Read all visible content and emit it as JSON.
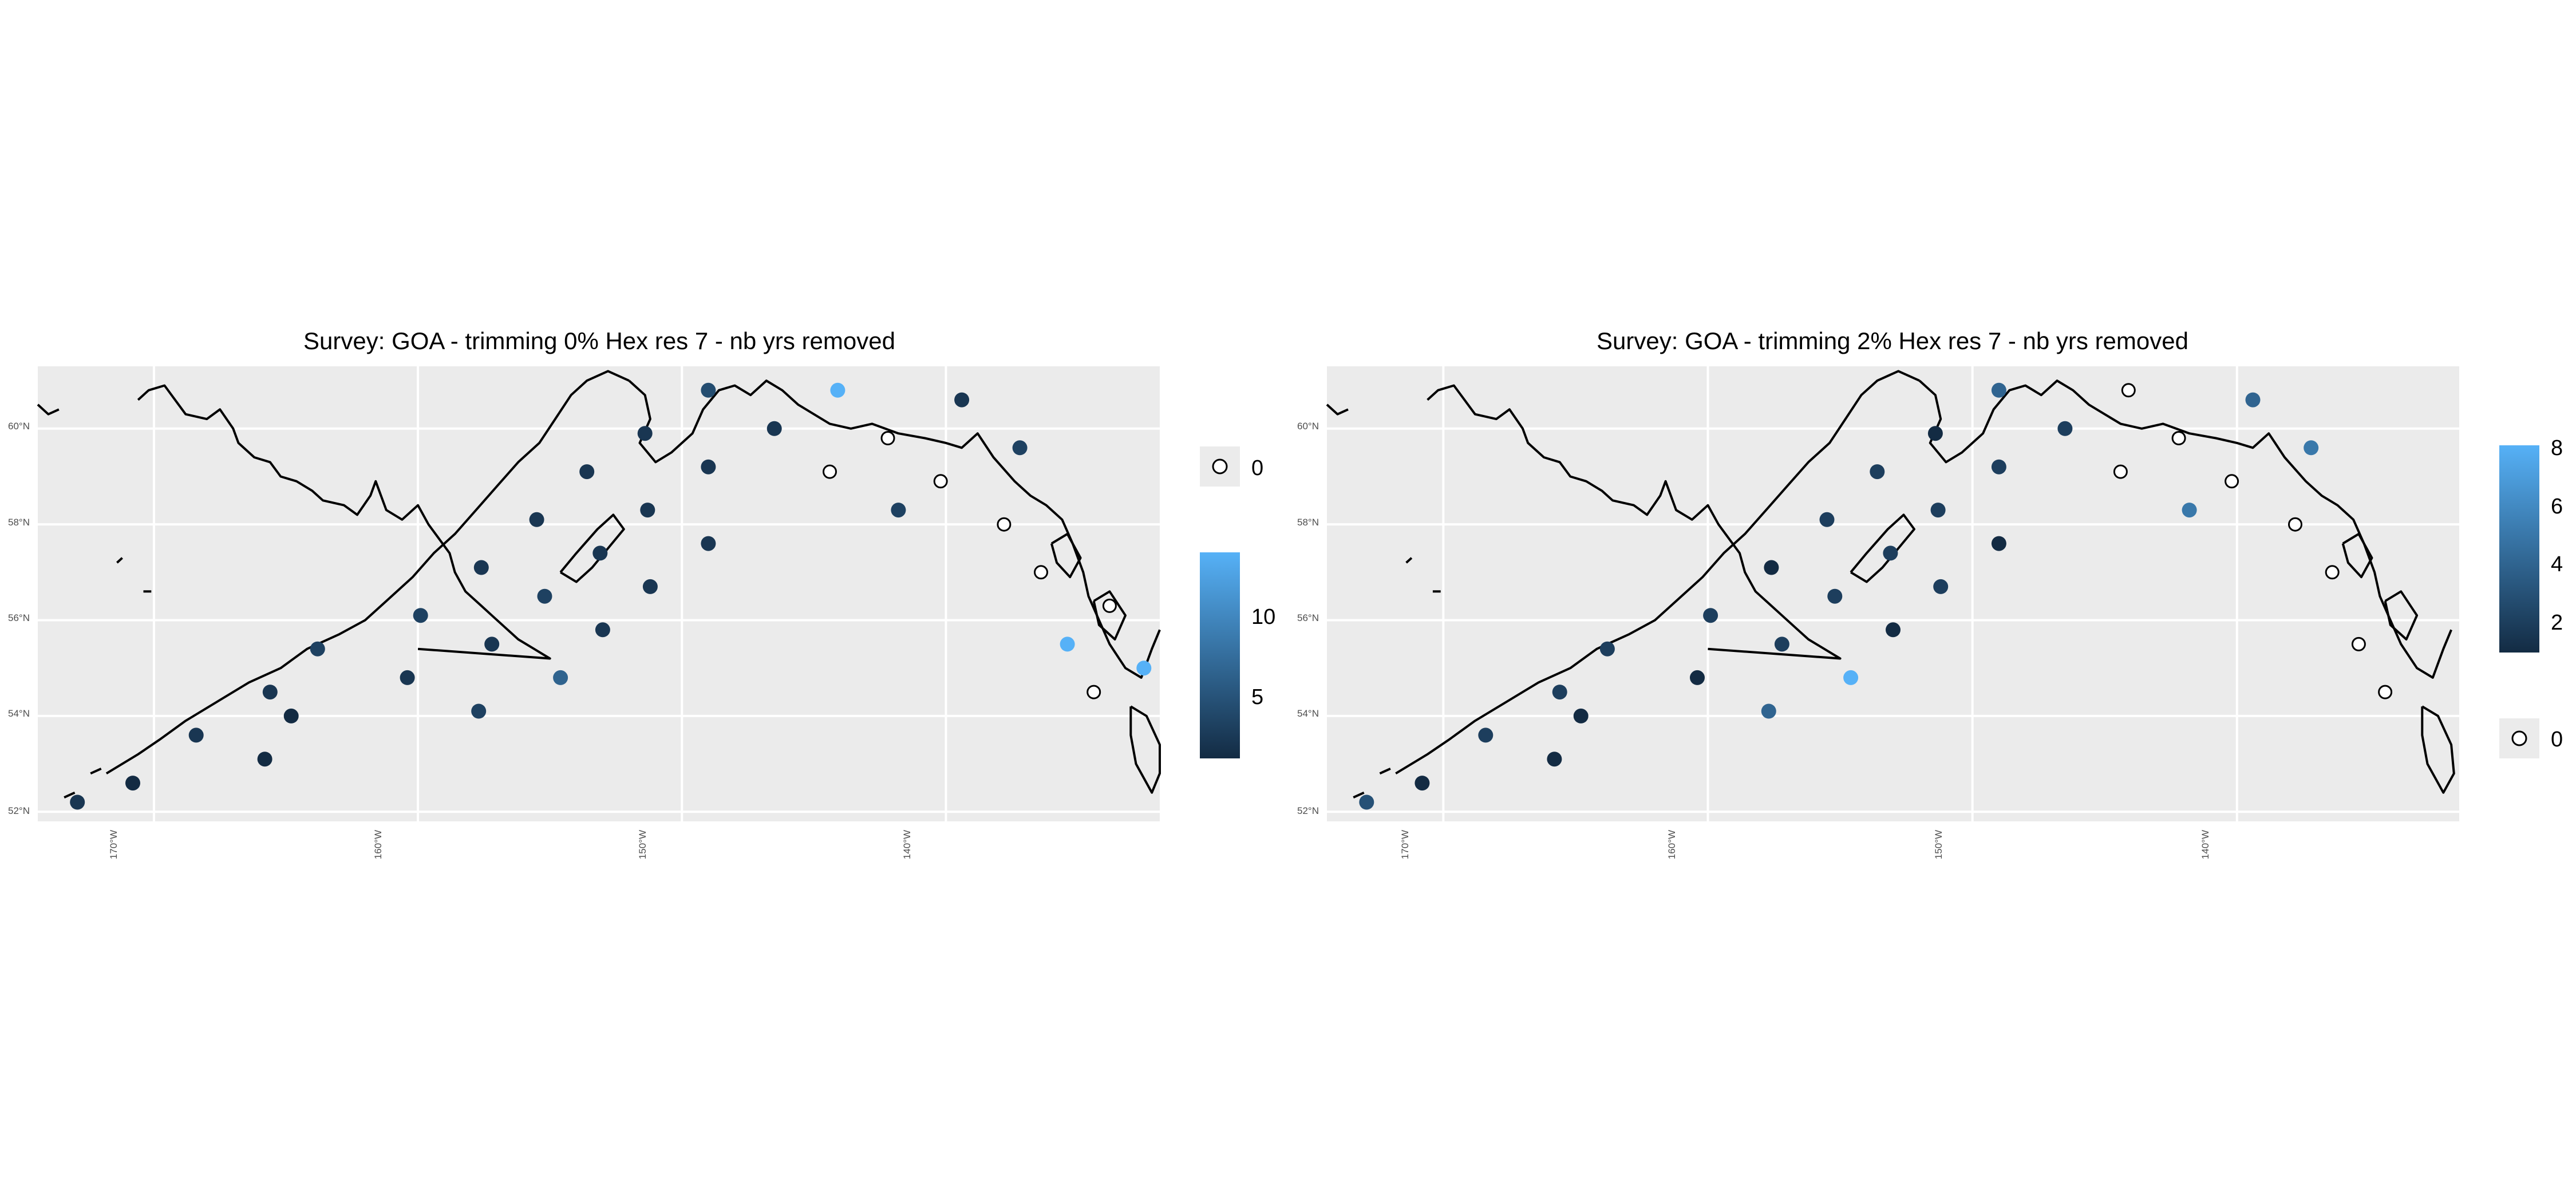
{
  "panels": [
    {
      "title": "Survey: GOA - trimming 0% Hex res 7 - nb yrs removed",
      "x_ticks": [
        "170°W",
        "160°W",
        "150°W",
        "140°W"
      ],
      "y_ticks": [
        "60°N",
        "58°N",
        "56°N",
        "54°N",
        "52°N"
      ],
      "legend_zero_label": "0",
      "legend_colorbar_labels": [
        "5",
        "10"
      ],
      "legend_layout": "zero-above-colorbar",
      "points": [
        {
          "lon": -172.9,
          "lat": 52.2,
          "value": 2
        },
        {
          "lon": -170.8,
          "lat": 52.6,
          "value": 1
        },
        {
          "lon": -168.4,
          "lat": 53.6,
          "value": 2
        },
        {
          "lon": -165.8,
          "lat": 53.1,
          "value": 1
        },
        {
          "lon": -164.8,
          "lat": 54.0,
          "value": 1
        },
        {
          "lon": -165.6,
          "lat": 54.5,
          "value": 2
        },
        {
          "lon": -163.8,
          "lat": 55.4,
          "value": 3
        },
        {
          "lon": -160.4,
          "lat": 54.8,
          "value": 2
        },
        {
          "lon": -159.9,
          "lat": 56.1,
          "value": 3
        },
        {
          "lon": -157.7,
          "lat": 54.1,
          "value": 3
        },
        {
          "lon": -157.2,
          "lat": 55.5,
          "value": 2
        },
        {
          "lon": -157.6,
          "lat": 57.1,
          "value": 2
        },
        {
          "lon": -155.5,
          "lat": 58.1,
          "value": 2
        },
        {
          "lon": -155.2,
          "lat": 56.5,
          "value": 3
        },
        {
          "lon": -154.6,
          "lat": 54.8,
          "value": 6
        },
        {
          "lon": -153.6,
          "lat": 59.1,
          "value": 2
        },
        {
          "lon": -153.1,
          "lat": 57.4,
          "value": 2
        },
        {
          "lon": -153.0,
          "lat": 55.8,
          "value": 2
        },
        {
          "lon": -151.3,
          "lat": 58.3,
          "value": 2
        },
        {
          "lon": -151.2,
          "lat": 56.7,
          "value": 2
        },
        {
          "lon": -151.4,
          "lat": 59.9,
          "value": 2
        },
        {
          "lon": -149.0,
          "lat": 59.2,
          "value": 2
        },
        {
          "lon": -149.0,
          "lat": 57.6,
          "value": 2
        },
        {
          "lon": -149.0,
          "lat": 60.8,
          "value": 4
        },
        {
          "lon": -146.5,
          "lat": 60.0,
          "value": 2
        },
        {
          "lon": -144.1,
          "lat": 60.8,
          "value": 13
        },
        {
          "lon": -144.4,
          "lat": 59.1,
          "value": 0
        },
        {
          "lon": -142.2,
          "lat": 59.8,
          "value": 0
        },
        {
          "lon": -141.8,
          "lat": 58.3,
          "value": 3
        },
        {
          "lon": -140.2,
          "lat": 58.9,
          "value": 0
        },
        {
          "lon": -139.4,
          "lat": 60.6,
          "value": 2
        },
        {
          "lon": -137.8,
          "lat": 58.0,
          "value": 0
        },
        {
          "lon": -137.2,
          "lat": 59.6,
          "value": 3
        },
        {
          "lon": -136.4,
          "lat": 57.0,
          "value": 0
        },
        {
          "lon": -135.4,
          "lat": 55.5,
          "value": 13
        },
        {
          "lon": -134.4,
          "lat": 54.5,
          "value": 0
        },
        {
          "lon": -133.8,
          "lat": 56.3,
          "value": 0
        },
        {
          "lon": -132.5,
          "lat": 55.0,
          "value": 13
        }
      ]
    },
    {
      "title": "Survey: GOA - trimming 2% Hex res 7 - nb yrs removed",
      "x_ticks": [
        "170°W",
        "160°W",
        "150°W",
        "140°W"
      ],
      "y_ticks": [
        "60°N",
        "58°N",
        "56°N",
        "54°N",
        "52°N"
      ],
      "legend_zero_label": "0",
      "legend_colorbar_labels": [
        "2",
        "4",
        "6",
        "8"
      ],
      "legend_layout": "colorbar-above-zero",
      "points": [
        {
          "lon": -172.9,
          "lat": 52.2,
          "value": 3
        },
        {
          "lon": -170.8,
          "lat": 52.6,
          "value": 1
        },
        {
          "lon": -168.4,
          "lat": 53.6,
          "value": 2
        },
        {
          "lon": -165.8,
          "lat": 53.1,
          "value": 1
        },
        {
          "lon": -164.8,
          "lat": 54.0,
          "value": 1
        },
        {
          "lon": -165.6,
          "lat": 54.5,
          "value": 2
        },
        {
          "lon": -163.8,
          "lat": 55.4,
          "value": 2
        },
        {
          "lon": -160.4,
          "lat": 54.8,
          "value": 1
        },
        {
          "lon": -159.9,
          "lat": 56.1,
          "value": 2
        },
        {
          "lon": -157.7,
          "lat": 54.1,
          "value": 4
        },
        {
          "lon": -157.2,
          "lat": 55.5,
          "value": 2
        },
        {
          "lon": -157.6,
          "lat": 57.1,
          "value": 1
        },
        {
          "lon": -155.5,
          "lat": 58.1,
          "value": 2
        },
        {
          "lon": -155.2,
          "lat": 56.5,
          "value": 2
        },
        {
          "lon": -154.6,
          "lat": 54.8,
          "value": 8
        },
        {
          "lon": -153.6,
          "lat": 59.1,
          "value": 2
        },
        {
          "lon": -153.1,
          "lat": 57.4,
          "value": 2
        },
        {
          "lon": -153.0,
          "lat": 55.8,
          "value": 1
        },
        {
          "lon": -151.3,
          "lat": 58.3,
          "value": 2
        },
        {
          "lon": -151.2,
          "lat": 56.7,
          "value": 2
        },
        {
          "lon": -151.4,
          "lat": 59.9,
          "value": 1
        },
        {
          "lon": -149.0,
          "lat": 59.2,
          "value": 2
        },
        {
          "lon": -149.0,
          "lat": 57.6,
          "value": 1
        },
        {
          "lon": -149.0,
          "lat": 60.8,
          "value": 4
        },
        {
          "lon": -146.5,
          "lat": 60.0,
          "value": 2
        },
        {
          "lon": -144.1,
          "lat": 60.8,
          "value": 0
        },
        {
          "lon": -144.4,
          "lat": 59.1,
          "value": 0
        },
        {
          "lon": -142.2,
          "lat": 59.8,
          "value": 0
        },
        {
          "lon": -141.8,
          "lat": 58.3,
          "value": 5
        },
        {
          "lon": -140.2,
          "lat": 58.9,
          "value": 0
        },
        {
          "lon": -139.4,
          "lat": 60.6,
          "value": 4
        },
        {
          "lon": -137.8,
          "lat": 58.0,
          "value": 0
        },
        {
          "lon": -137.2,
          "lat": 59.6,
          "value": 5
        },
        {
          "lon": -136.4,
          "lat": 57.0,
          "value": 0
        },
        {
          "lon": -135.4,
          "lat": 55.5,
          "value": 0
        },
        {
          "lon": -134.4,
          "lat": 54.5,
          "value": 0
        }
      ]
    }
  ],
  "colors": {
    "panel_background": "#ebebeb",
    "grid": "#ffffff",
    "coast": "#000000",
    "low": "#132b43",
    "high": "#56b1f7",
    "zero_fill": "#ffffff",
    "zero_stroke": "#000000"
  }
}
